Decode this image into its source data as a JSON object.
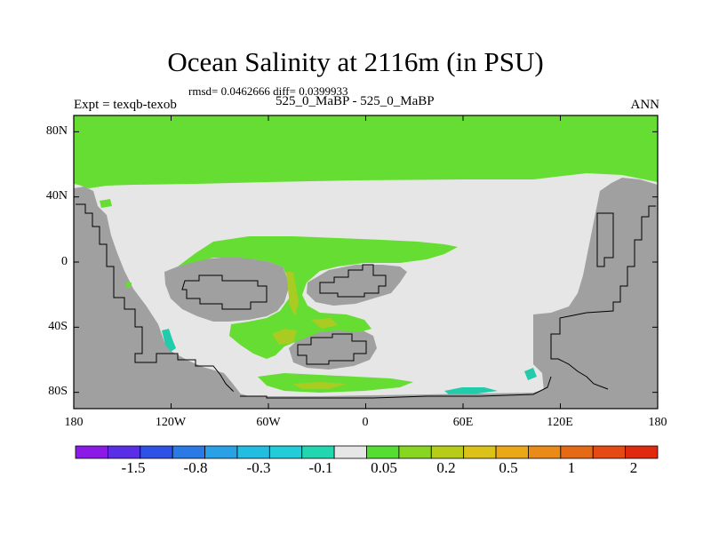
{
  "title": "Ocean Salinity at 2116m (in PSU)",
  "stats": "rmsd= 0.0462666 diff= 0.0399933",
  "left_label": "Expt = texqb-texob",
  "center_label": "525_0_MaBP - 525_0_MaBP",
  "right_label": "ANN",
  "map": {
    "projection": "cylindrical equidistant",
    "lon_range": [
      -180,
      180
    ],
    "lat_range": [
      -90,
      90
    ],
    "y_ticks": [
      "80N",
      "40N",
      "0",
      "40S",
      "80S"
    ],
    "x_ticks": [
      "180",
      "120W",
      "60W",
      "0",
      "60E",
      "120E",
      "180"
    ],
    "colors": {
      "land": "#a0a0a0",
      "near_zero": "#e6e6e6",
      "positive_small": "#66dd33",
      "positive_mid": "#aacc22",
      "negative_small": "#22ccaa"
    }
  },
  "colorbar": {
    "colors": [
      "#8c1ae6",
      "#5a2ee6",
      "#2f52e6",
      "#2a7ae6",
      "#2aa0e6",
      "#22bde0",
      "#22ccd8",
      "#22d6b0",
      "#e6e6e6",
      "#55dd33",
      "#88d622",
      "#b6cc18",
      "#dcc218",
      "#eaa818",
      "#ea8a18",
      "#e66a16",
      "#e64a14",
      "#e02a10"
    ],
    "labels": [
      "-1.5",
      "-0.8",
      "-0.3",
      "-0.1",
      "0.05",
      "0.2",
      "0.5",
      "1",
      "2"
    ]
  }
}
